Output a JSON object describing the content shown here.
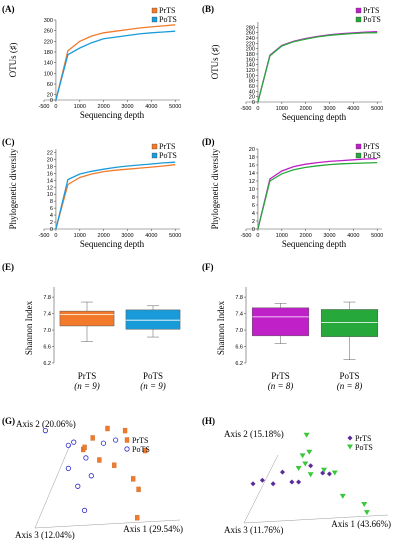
{
  "colors": {
    "prts_orange": "#F27A2A",
    "pots_blue": "#1A9BD9",
    "prts_magenta": "#C020C8",
    "pots_green": "#27A83A",
    "scatter_blue": "#2A2ACB",
    "scatter_purple": "#5A2A9A",
    "scatter_green": "#3CC83C"
  },
  "chart_data": [
    {
      "id": "A",
      "type": "line",
      "panel_label": "(A)",
      "xlabel": "Sequencing depth",
      "ylabel": "OTUs (♯)",
      "xlim": [
        -500,
        5200
      ],
      "ylim": [
        0,
        300
      ],
      "xticks": [
        "-500",
        "0",
        "1000",
        "2000",
        "3000",
        "4000",
        "5000"
      ],
      "yticks": [
        "0",
        "20",
        "60",
        "100",
        "140",
        "180",
        "220",
        "260",
        "300"
      ],
      "series": [
        {
          "name": "PrTS",
          "color": "#F27A2A",
          "x": [
            0,
            500,
            1000,
            1500,
            2000,
            2500,
            3000,
            3500,
            4000,
            4500,
            5000
          ],
          "y": [
            0,
            185,
            220,
            240,
            252,
            258,
            264,
            270,
            274,
            278,
            282
          ]
        },
        {
          "name": "PoTS",
          "color": "#1A9BD9",
          "x": [
            0,
            500,
            1000,
            1500,
            2000,
            2500,
            3000,
            3500,
            4000,
            4500,
            5000
          ],
          "y": [
            0,
            170,
            195,
            215,
            230,
            236,
            242,
            248,
            252,
            255,
            258
          ]
        }
      ],
      "legend": [
        "PrTS",
        "PoTS"
      ]
    },
    {
      "id": "B",
      "type": "line",
      "panel_label": "(B)",
      "xlabel": "Sequencing depth",
      "ylabel": "OTUs (♯)",
      "xlim": [
        -500,
        5200
      ],
      "ylim": [
        0,
        300
      ],
      "xticks": [
        "-500",
        "0",
        "1000",
        "2000",
        "3000",
        "4000",
        "5000"
      ],
      "yticks": [
        "0",
        "20",
        "40",
        "60",
        "80",
        "100",
        "120",
        "140",
        "160",
        "180",
        "200",
        "220",
        "240",
        "260",
        "280"
      ],
      "series": [
        {
          "name": "PrTS",
          "color": "#C020C8",
          "x": [
            0,
            500,
            1000,
            1500,
            2000,
            2500,
            3000,
            3500,
            4000,
            4500,
            5000
          ],
          "y": [
            0,
            175,
            212,
            228,
            238,
            246,
            252,
            256,
            259,
            262,
            264
          ]
        },
        {
          "name": "PoTS",
          "color": "#27A83A",
          "x": [
            0,
            500,
            1000,
            1500,
            2000,
            2500,
            3000,
            3500,
            4000,
            4500,
            5000
          ],
          "y": [
            0,
            173,
            210,
            226,
            236,
            244,
            250,
            254,
            257,
            259,
            260
          ]
        }
      ],
      "legend": [
        "PrTS",
        "PoTS"
      ]
    },
    {
      "id": "C",
      "type": "line",
      "panel_label": "(C)",
      "xlabel": "Sequencing depth",
      "ylabel": "Phylogenetic diversity",
      "xlim": [
        -500,
        5200
      ],
      "ylim": [
        0,
        23
      ],
      "xticks": [
        "-500",
        "0",
        "1000",
        "2000",
        "3000",
        "4000",
        "5000"
      ],
      "yticks": [
        "0",
        "2",
        "4",
        "6",
        "8",
        "10",
        "12",
        "14",
        "16",
        "18",
        "20",
        "22"
      ],
      "series": [
        {
          "name": "PrTS",
          "color": "#F27A2A",
          "x": [
            0,
            500,
            1000,
            1500,
            2000,
            2500,
            3000,
            3500,
            4000,
            4500,
            5000
          ],
          "y": [
            0,
            12.8,
            14.8,
            15.8,
            16.5,
            16.9,
            17.2,
            17.5,
            17.8,
            18.1,
            18.5
          ]
        },
        {
          "name": "PoTS",
          "color": "#1A9BD9",
          "x": [
            0,
            500,
            1000,
            1500,
            2000,
            2500,
            3000,
            3500,
            4000,
            4500,
            5000
          ],
          "y": [
            0,
            14.2,
            15.8,
            16.6,
            17.2,
            17.7,
            18.1,
            18.4,
            18.7,
            19.0,
            19.2
          ]
        }
      ],
      "legend": [
        "PrTS",
        "PoTS"
      ]
    },
    {
      "id": "D",
      "type": "line",
      "panel_label": "(D)",
      "xlabel": "Sequencing depth",
      "ylabel": "Phylogenetic diversity",
      "xlim": [
        -500,
        5200
      ],
      "ylim": [
        0,
        20
      ],
      "xticks": [
        "-500",
        "0",
        "1000",
        "2000",
        "3000",
        "4000",
        "5000"
      ],
      "yticks": [
        "0",
        "2",
        "4",
        "6",
        "8",
        "10",
        "12",
        "14",
        "16",
        "18",
        "20"
      ],
      "series": [
        {
          "name": "PrTS",
          "color": "#C020C8",
          "x": [
            0,
            500,
            1000,
            1500,
            2000,
            2500,
            3000,
            3500,
            4000,
            4500,
            5000
          ],
          "y": [
            0,
            12.5,
            14.5,
            15.6,
            16.2,
            16.6,
            16.9,
            17.1,
            17.3,
            17.5,
            17.6
          ]
        },
        {
          "name": "PoTS",
          "color": "#27A83A",
          "x": [
            0,
            500,
            1000,
            1500,
            2000,
            2500,
            3000,
            3500,
            4000,
            4500,
            5000
          ],
          "y": [
            0,
            12.0,
            13.8,
            14.8,
            15.4,
            15.8,
            16.1,
            16.3,
            16.4,
            16.5,
            16.6
          ]
        }
      ],
      "legend": [
        "PrTS",
        "PoTS"
      ]
    },
    {
      "id": "E",
      "type": "box",
      "panel_label": "(E)",
      "ylabel": "Shannon Index",
      "ylim": [
        6.2,
        7.9
      ],
      "yticks": [
        "6.2",
        "6.6",
        "7.0",
        "7.4",
        "7.8"
      ],
      "boxes": [
        {
          "name": "PrTS",
          "n_label": "(n = 9)",
          "color": "#F27A2A",
          "min": 6.72,
          "q1": 7.1,
          "median": 7.38,
          "q3": 7.46,
          "max": 7.68
        },
        {
          "name": "PoTS",
          "n_label": "(n = 9)",
          "color": "#1A9BD9",
          "min": 6.83,
          "q1": 7.02,
          "median": 7.24,
          "q3": 7.49,
          "max": 7.59
        }
      ]
    },
    {
      "id": "F",
      "type": "box",
      "panel_label": "(F)",
      "ylabel": "Shannon Index",
      "ylim": [
        6.2,
        7.9
      ],
      "yticks": [
        "6.2",
        "6.6",
        "7.0",
        "7.4",
        "7.8"
      ],
      "boxes": [
        {
          "name": "PrTS",
          "n_label": "(n = 8)",
          "color": "#C020C8",
          "min": 6.67,
          "q1": 6.86,
          "median": 7.32,
          "q3": 7.54,
          "max": 7.65
        },
        {
          "name": "PoTS",
          "n_label": "(n = 8)",
          "color": "#27A83A",
          "min": 6.28,
          "q1": 6.84,
          "median": 7.18,
          "q3": 7.5,
          "max": 7.68
        }
      ]
    },
    {
      "id": "G",
      "type": "scatter",
      "panel_label": "(G)",
      "axis1": "Axis 1 (29.54%)",
      "axis2": "Axis 2 (20.06%)",
      "axis3": "Axis 3 (12.04%)",
      "legend": [
        "PrTS",
        "PoTS"
      ],
      "series": [
        {
          "name": "PrTS",
          "marker": "square",
          "color": "#F27A2A",
          "points": [
            [
              0.72,
              0.05
            ],
            [
              0.73,
              0.32
            ],
            [
              0.69,
              0.42
            ],
            [
              0.55,
              0.55
            ],
            [
              0.44,
              0.6
            ],
            [
              0.32,
              0.7
            ],
            [
              0.33,
              0.72
            ],
            [
              0.39,
              0.81
            ],
            [
              0.5,
              0.9
            ],
            [
              0.63,
              0.88
            ],
            [
              0.78,
              0.69
            ]
          ]
        },
        {
          "name": "PoTS",
          "marker": "circle",
          "color": "#2A2ACB",
          "points": [
            [
              0.33,
              0.12
            ],
            [
              0.28,
              0.35
            ],
            [
              0.38,
              0.45
            ],
            [
              0.21,
              0.52
            ],
            [
              0.34,
              0.62
            ],
            [
              0.21,
              0.74
            ],
            [
              0.25,
              0.77
            ],
            [
              0.47,
              0.76
            ],
            [
              0.56,
              0.79
            ],
            [
              0.04,
              0.88
            ]
          ]
        }
      ]
    },
    {
      "id": "H",
      "type": "scatter",
      "panel_label": "(H)",
      "axis1": "Axis 1 (43.66%)",
      "axis2": "Axis 2 (15.18%)",
      "axis3": "Axis 3 (11.76%)",
      "legend": [
        "PrTS",
        "PoTS"
      ],
      "series": [
        {
          "name": "PrTS",
          "marker": "diamond",
          "color": "#5A2A9A",
          "points": [
            [
              0.03,
              0.38
            ],
            [
              0.1,
              0.42
            ],
            [
              0.18,
              0.38
            ],
            [
              0.25,
              0.51
            ],
            [
              0.32,
              0.4
            ],
            [
              0.37,
              0.4
            ],
            [
              0.46,
              0.58
            ],
            [
              0.55,
              0.5
            ],
            [
              0.6,
              0.49
            ]
          ]
        },
        {
          "name": "PoTS",
          "marker": "triangle",
          "color": "#3CC83C",
          "points": [
            [
              0.88,
              0.06
            ],
            [
              0.86,
              0.15
            ],
            [
              0.7,
              0.24
            ],
            [
              0.64,
              0.5
            ],
            [
              0.56,
              0.53
            ],
            [
              0.46,
              0.48
            ],
            [
              0.42,
              0.6
            ],
            [
              0.37,
              0.55
            ],
            [
              0.45,
              0.73
            ],
            [
              0.4,
              0.69
            ],
            [
              0.43,
              0.92
            ]
          ]
        }
      ]
    }
  ]
}
